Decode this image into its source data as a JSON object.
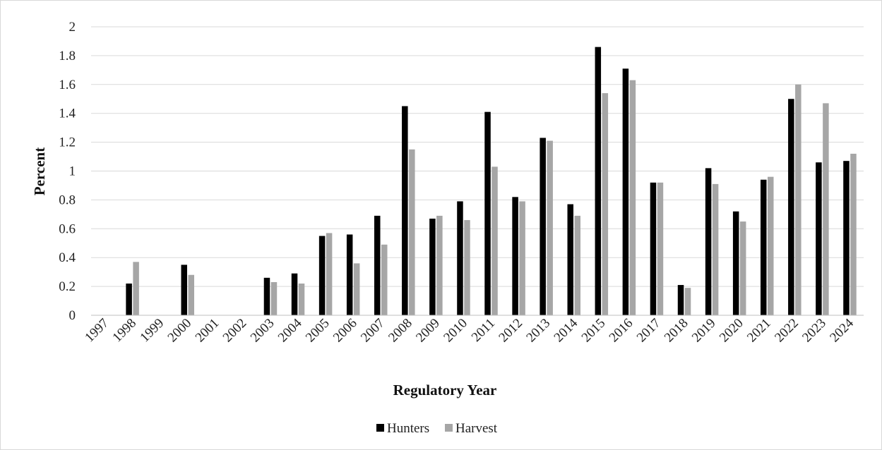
{
  "chart_data": {
    "type": "bar",
    "title": "",
    "xlabel": "Regulatory Year",
    "ylabel": "Percent",
    "ylim": [
      0,
      2
    ],
    "yticks": [
      "0",
      "0.2",
      "0.4",
      "0.6",
      "0.8",
      "1",
      "1.2",
      "1.4",
      "1.6",
      "1.8",
      "2"
    ],
    "grid": true,
    "legend": "bottom",
    "categories": [
      "1997",
      "1998",
      "1999",
      "2000",
      "2001",
      "2002",
      "2003",
      "2004",
      "2005",
      "2006",
      "2007",
      "2008",
      "2009",
      "2010",
      "2011",
      "2012",
      "2013",
      "2014",
      "2015",
      "2016",
      "2017",
      "2018",
      "2019",
      "2020",
      "2021",
      "2022",
      "2023",
      "2024"
    ],
    "series": [
      {
        "name": "Hunters",
        "color": "#000000",
        "values": [
          0,
          0.22,
          0,
          0.35,
          0,
          0,
          0.26,
          0.29,
          0.55,
          0.56,
          0.69,
          1.45,
          0.67,
          0.79,
          1.41,
          0.82,
          1.23,
          0.77,
          1.86,
          1.71,
          0.92,
          0.21,
          1.02,
          0.72,
          0.94,
          1.5,
          1.06,
          1.07
        ]
      },
      {
        "name": "Harvest",
        "color": "#a6a6a6",
        "values": [
          0,
          0.37,
          0,
          0.28,
          0,
          0,
          0.23,
          0.22,
          0.57,
          0.36,
          0.49,
          1.15,
          0.69,
          0.66,
          1.03,
          0.79,
          1.21,
          0.69,
          1.54,
          1.63,
          0.92,
          0.19,
          0.91,
          0.65,
          0.96,
          1.6,
          1.47,
          1.12
        ]
      }
    ]
  }
}
